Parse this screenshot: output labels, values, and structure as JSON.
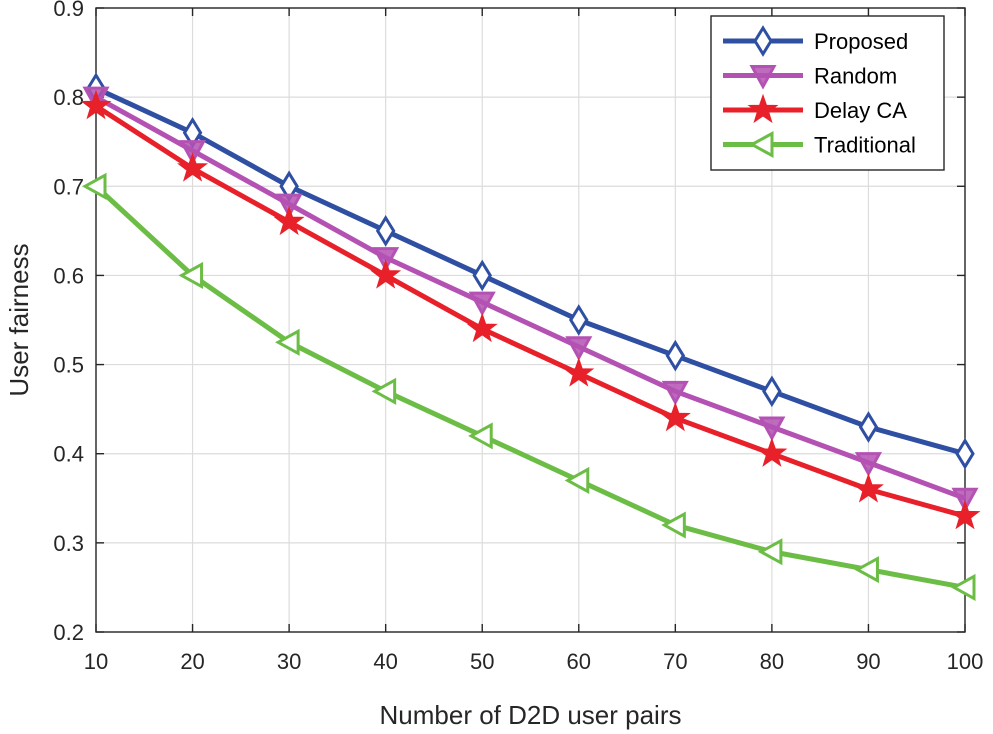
{
  "chart_data": {
    "type": "line",
    "title": "",
    "xlabel": "Number of D2D user pairs",
    "ylabel": "User fairness",
    "x": [
      10,
      20,
      30,
      40,
      50,
      60,
      70,
      80,
      90,
      100
    ],
    "xlim": [
      10,
      100
    ],
    "ylim": [
      0.2,
      0.9
    ],
    "xticks": [
      "10",
      "20",
      "30",
      "40",
      "50",
      "60",
      "70",
      "80",
      "90",
      "100"
    ],
    "yticks": [
      "0.2",
      "0.3",
      "0.4",
      "0.5",
      "0.6",
      "0.7",
      "0.8",
      "0.9"
    ],
    "grid": true,
    "legend_position": "top-right",
    "series": [
      {
        "name": "Proposed",
        "marker": "diamond",
        "color": "#2f4fa2",
        "values": [
          0.81,
          0.76,
          0.7,
          0.65,
          0.6,
          0.55,
          0.51,
          0.47,
          0.43,
          0.4
        ]
      },
      {
        "name": "Random",
        "marker": "triangle-down",
        "color": "#b452b4",
        "values": [
          0.8,
          0.74,
          0.68,
          0.62,
          0.57,
          0.52,
          0.47,
          0.43,
          0.39,
          0.35
        ]
      },
      {
        "name": "Delay CA",
        "marker": "star",
        "color": "#e8202a",
        "values": [
          0.79,
          0.72,
          0.66,
          0.6,
          0.54,
          0.49,
          0.44,
          0.4,
          0.36,
          0.33
        ]
      },
      {
        "name": "Traditional",
        "marker": "triangle-left",
        "color": "#6cbd45",
        "values": [
          0.7,
          0.6,
          0.525,
          0.47,
          0.42,
          0.37,
          0.32,
          0.29,
          0.27,
          0.25
        ]
      }
    ]
  }
}
